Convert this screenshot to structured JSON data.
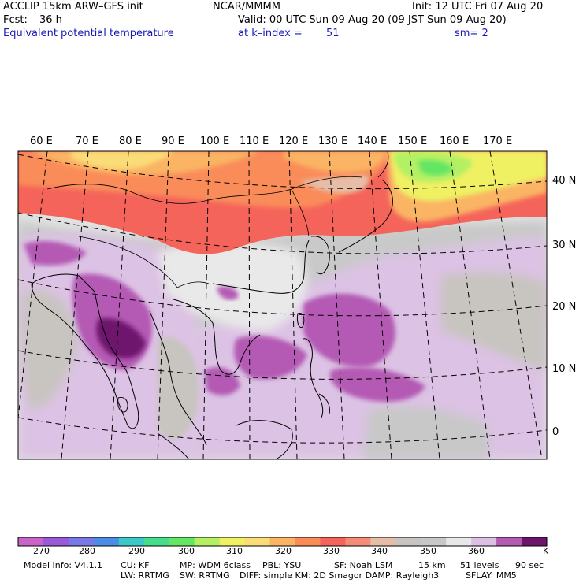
{
  "header": {
    "model": "ACCLIP 15km ARW–GFS init",
    "org": "NCAR/MMMM",
    "init": "Init: 12 UTC Fri 07 Aug 20",
    "fcst_label": "Fcst:",
    "fcst_value": "36 h",
    "valid": "Valid: 00 UTC Sun 09 Aug 20 (09 JST Sun 09 Aug 20)",
    "field": "Equivalent potential temperature",
    "level": "at k–index =",
    "level_value": "51",
    "smooth": "sm= 2"
  },
  "map": {
    "longitudes": [
      "60 E",
      "70 E",
      "80 E",
      "90 E",
      "100 E",
      "110 E",
      "120 E",
      "130 E",
      "140 E",
      "150 E",
      "160 E",
      "170 E"
    ],
    "latitudes": [
      "40 N",
      "30 N",
      "20 N",
      "10 N",
      "0"
    ]
  },
  "colorbar": {
    "unit": "K",
    "labels": [
      "270",
      "280",
      "290",
      "300",
      "310",
      "320",
      "330",
      "340",
      "350",
      "360"
    ],
    "colors": [
      "#c864c8",
      "#9a5ad8",
      "#7878e6",
      "#4b8ce6",
      "#3cc8c8",
      "#46dc8c",
      "#64e664",
      "#b4f064",
      "#f0f064",
      "#fadc78",
      "#fab464",
      "#fa8c5a",
      "#f5645a",
      "#f58c78",
      "#e6bea8",
      "#c8c4c0",
      "#c8c8c8",
      "#e8e8e8",
      "#dcc0e4",
      "#b45ab4",
      "#6e146e"
    ]
  },
  "footer": {
    "line1": [
      {
        "key": "model",
        "text": "Model Info: V4.1.1"
      },
      {
        "key": "cu",
        "text": "CU: KF"
      },
      {
        "key": "mp",
        "text": "MP: WDM 6class"
      },
      {
        "key": "pbl",
        "text": "PBL: YSU"
      },
      {
        "key": "sf",
        "text": "SF: Noah LSM"
      },
      {
        "key": "res",
        "text": "15 km"
      },
      {
        "key": "levels",
        "text": "51 levels"
      },
      {
        "key": "dt",
        "text": "90 sec"
      }
    ],
    "line2": [
      {
        "key": "lw",
        "text": "LW: RRTMG"
      },
      {
        "key": "sw",
        "text": "SW: RRTMG"
      },
      {
        "key": "diff",
        "text": "DIFF: simple KM: 2D Smagor DAMP: Rayleigh3"
      },
      {
        "key": "sflay",
        "text": "SFLAY: MM5"
      }
    ]
  }
}
